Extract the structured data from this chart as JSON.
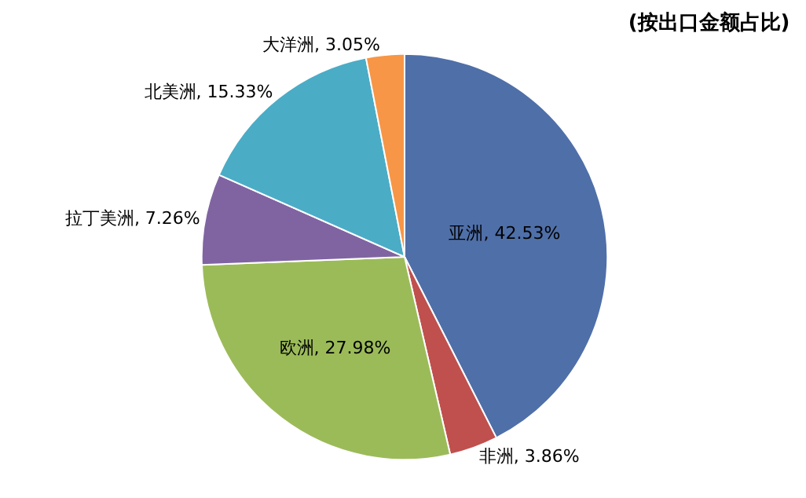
{
  "chart_data": {
    "type": "pie",
    "title": "(按出口金额占比)",
    "categories": [
      "亚洲",
      "非洲",
      "欧洲",
      "拉丁美洲",
      "北美洲",
      "大洋洲"
    ],
    "values": [
      42.53,
      3.86,
      27.98,
      7.26,
      15.33,
      3.05
    ],
    "colors": [
      "#4f6fa8",
      "#c0504d",
      "#9bbb59",
      "#8064a2",
      "#4bacc6",
      "#f79646"
    ],
    "value_labels": [
      "42.53%",
      "3.86%",
      "27.98%",
      "7.26%",
      "15.33%",
      "3.05%"
    ],
    "legend": false
  }
}
